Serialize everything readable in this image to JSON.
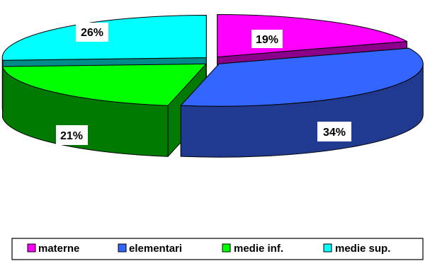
{
  "chart_data": {
    "type": "pie",
    "style": "3d-exploded",
    "categories": [
      "materne",
      "elementari",
      "medie inf.",
      "medie sup."
    ],
    "values": [
      19,
      34,
      21,
      26
    ],
    "labels": [
      "19%",
      "34%",
      "21%",
      "26%"
    ],
    "colors": [
      "#ff00ff",
      "#3366ff",
      "#00ff00",
      "#00ffff"
    ],
    "side_colors": [
      "#8b008b",
      "#1f3a8f",
      "#007a00",
      "#008b8b"
    ],
    "legend_position": "bottom",
    "title": ""
  }
}
